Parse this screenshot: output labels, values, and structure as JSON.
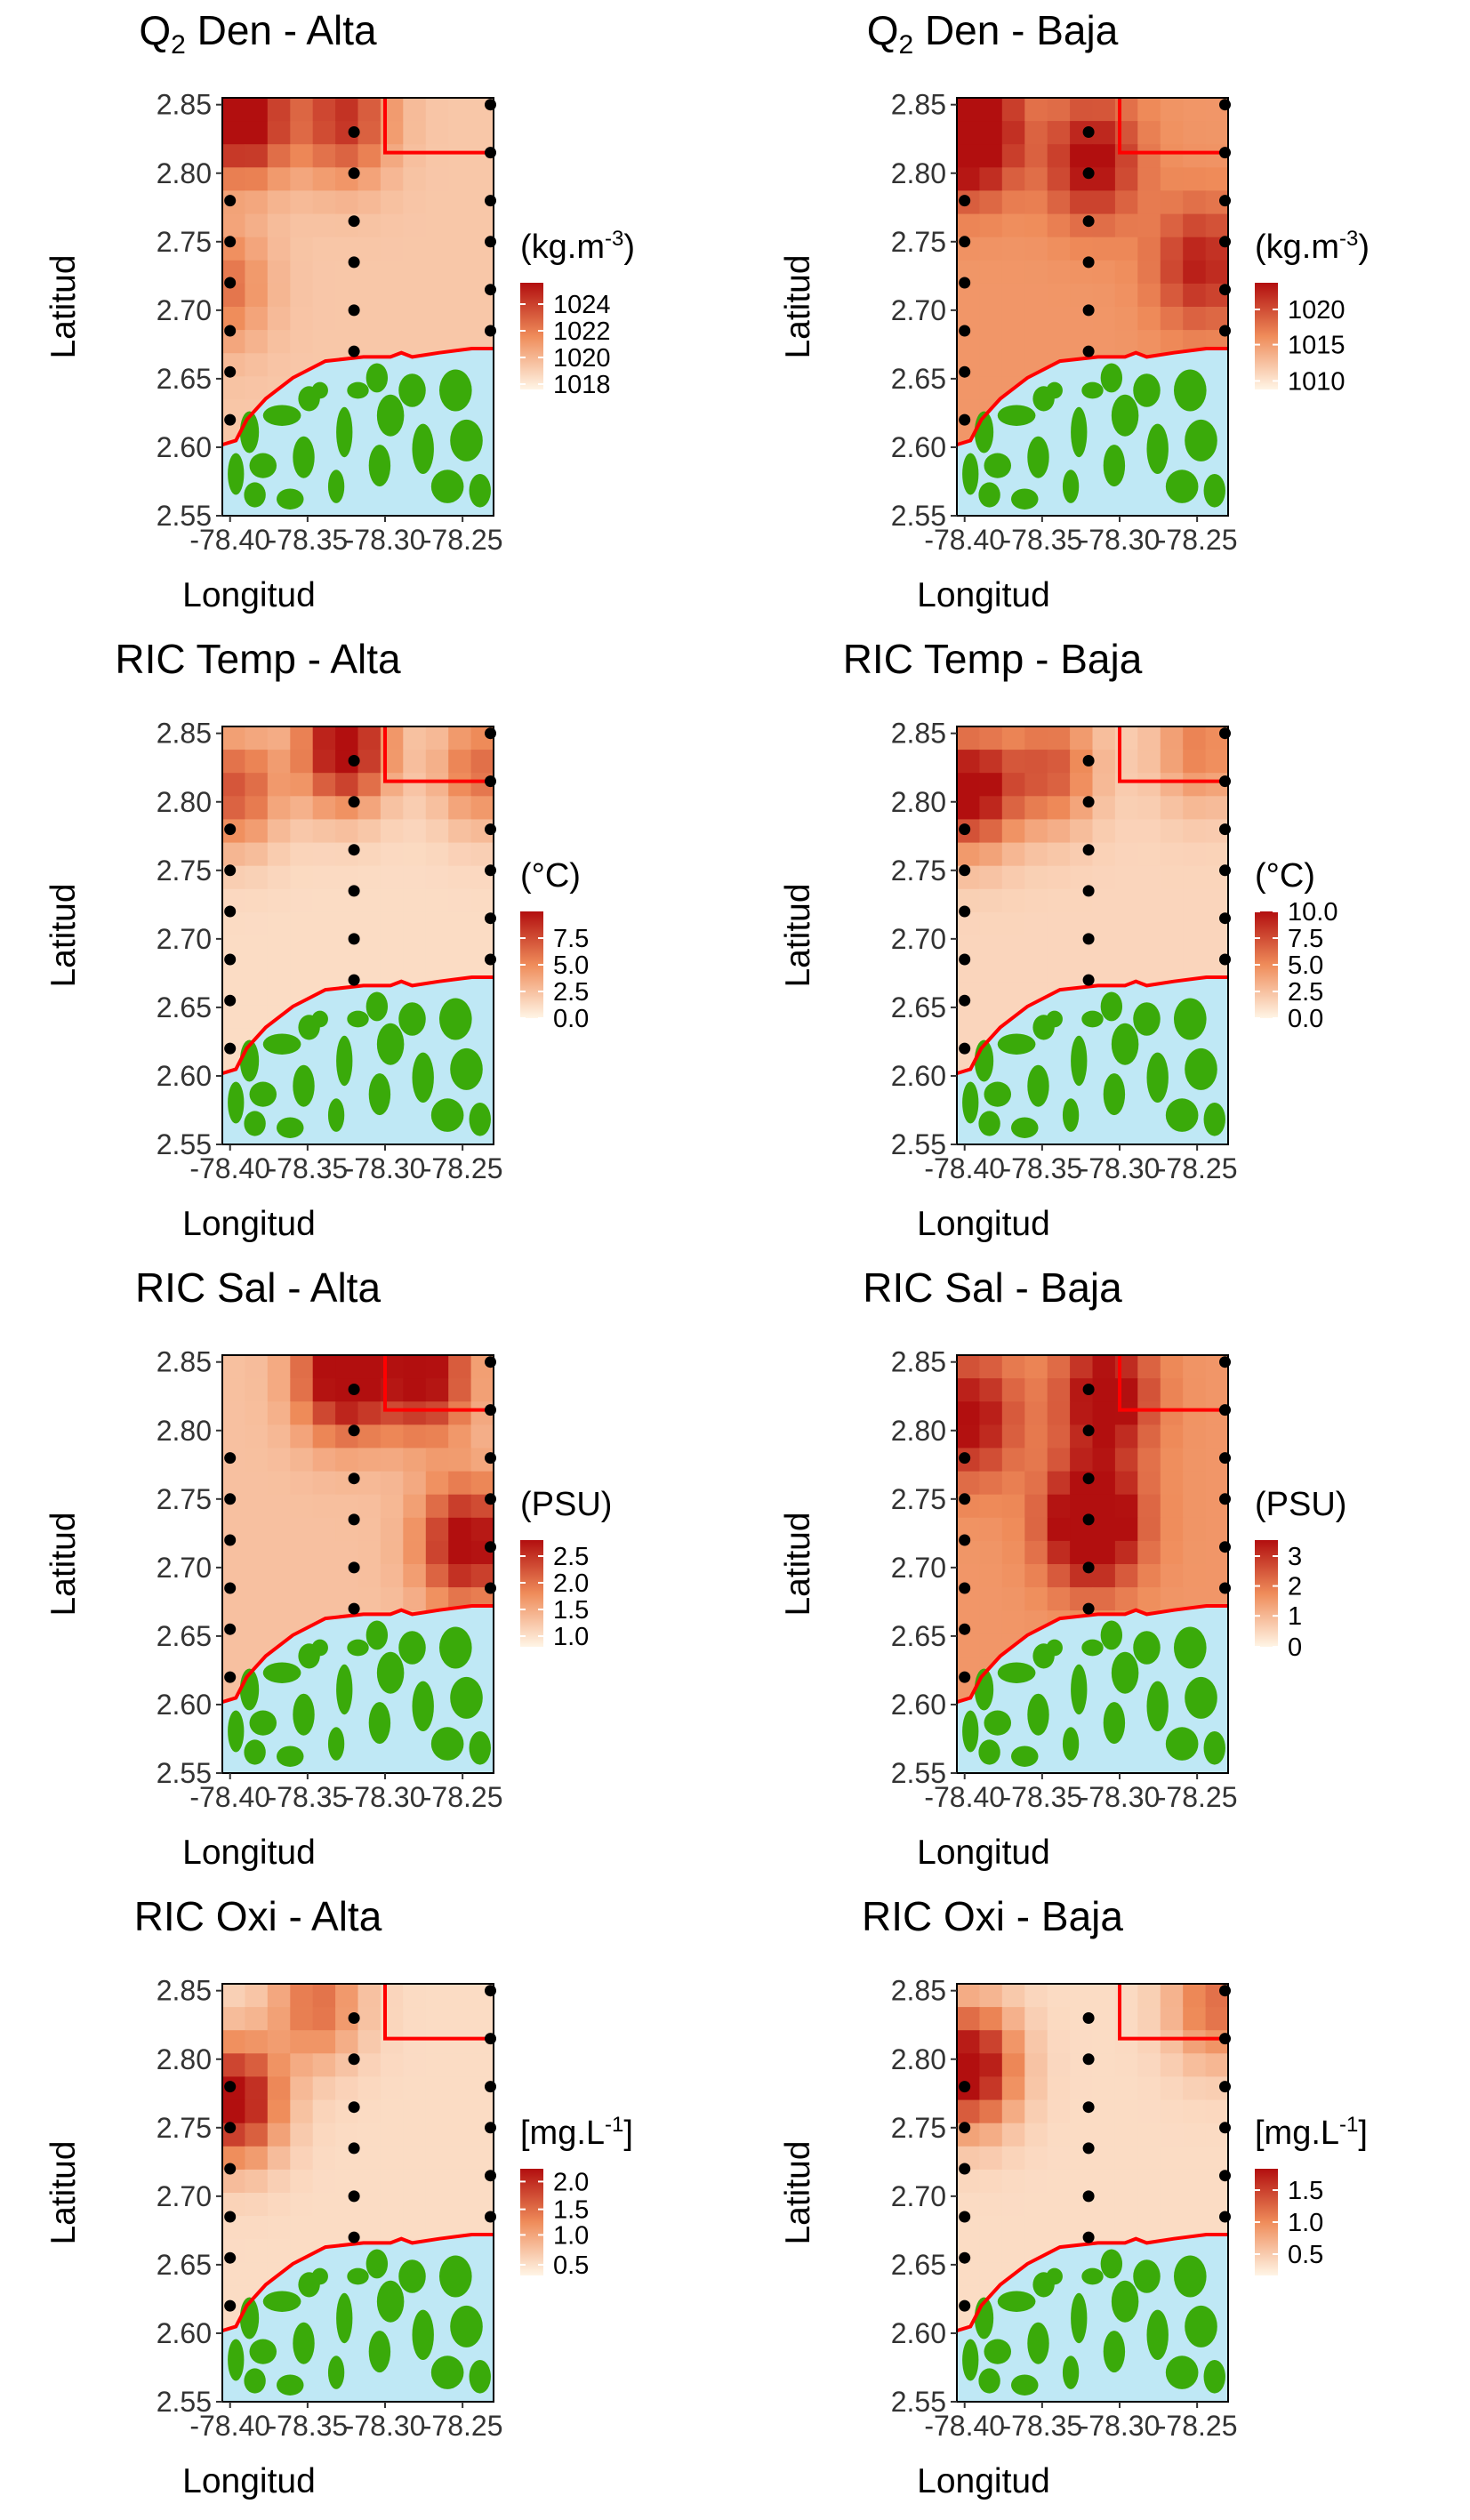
{
  "colors": {
    "scale_low": "#fff5e6",
    "scale_mid": "#ef8c5a",
    "scale_high": "#b20f0f",
    "water": "#bfe8f5",
    "land": "#3aaa0a",
    "outline": "#ff0000",
    "station": "#000000"
  },
  "axes": {
    "xlabel": "Longitud",
    "ylabel": "Latitud",
    "x_ticks": [
      "-78.40",
      "-78.35",
      "-78.30",
      "-78.25"
    ],
    "y_ticks": [
      "2.85",
      "2.80",
      "2.75",
      "2.70",
      "2.65",
      "2.60",
      "2.55"
    ]
  },
  "panels": [
    {
      "title_main": "Q",
      "title_sub": "2",
      "title_rest": " Den - Alta",
      "legend_title": "(kg.m",
      "legend_sup": "-3",
      "legend_close": ")",
      "legend_labels": [
        "1024",
        "1022",
        "1020",
        "1018"
      ],
      "legend_fracs": [
        0.8,
        0.55,
        0.3,
        0.05
      ],
      "hotspots": [
        [
          0.08,
          0.95,
          0.95
        ],
        [
          0.45,
          0.95,
          0.65
        ],
        [
          0.0,
          0.55,
          0.4
        ]
      ],
      "base": 0.22
    },
    {
      "title_main": "Q",
      "title_sub": "2",
      "title_rest": " Den - Baja",
      "legend_title": "(kg.m",
      "legend_sup": "-3",
      "legend_close": ")",
      "legend_labels": [
        "1020",
        "1015",
        "1010"
      ],
      "legend_fracs": [
        0.75,
        0.42,
        0.08
      ],
      "hotspots": [
        [
          0.05,
          0.92,
          1.0
        ],
        [
          0.5,
          0.85,
          0.6
        ],
        [
          0.9,
          0.6,
          0.5
        ]
      ],
      "base": 0.45
    },
    {
      "title_main": "RIC Temp - Alta",
      "title_sub": "",
      "title_rest": "",
      "legend_title": "(°C)",
      "legend_sup": "",
      "legend_close": "",
      "legend_labels": [
        "7.5",
        "5.0",
        "2.5",
        "0.0"
      ],
      "legend_fracs": [
        0.75,
        0.5,
        0.25,
        0.0
      ],
      "hotspots": [
        [
          0.45,
          0.95,
          1.0
        ],
        [
          0.05,
          0.85,
          0.6
        ],
        [
          0.95,
          0.9,
          0.5
        ]
      ],
      "base": 0.12
    },
    {
      "title_main": "RIC Temp - Baja",
      "title_sub": "",
      "title_rest": "",
      "legend_title": "(°C)",
      "legend_sup": "",
      "legend_close": "",
      "legend_labels": [
        "10.0",
        "7.5",
        "5.0",
        "2.5",
        "0.0"
      ],
      "legend_fracs": [
        1.0,
        0.75,
        0.5,
        0.25,
        0.0
      ],
      "hotspots": [
        [
          0.05,
          0.85,
          0.95
        ],
        [
          0.35,
          0.9,
          0.55
        ],
        [
          0.9,
          0.95,
          0.4
        ]
      ],
      "base": 0.15
    },
    {
      "title_main": "RIC Sal - Alta",
      "title_sub": "",
      "title_rest": "",
      "legend_title": "(PSU)",
      "legend_sup": "",
      "legend_close": "",
      "legend_labels": [
        "2.5",
        "2.0",
        "1.5",
        "1.0"
      ],
      "legend_fracs": [
        0.85,
        0.6,
        0.35,
        0.1
      ],
      "hotspots": [
        [
          0.45,
          0.95,
          0.95
        ],
        [
          0.9,
          0.55,
          0.85
        ],
        [
          0.75,
          0.95,
          0.8
        ]
      ],
      "base": 0.25
    },
    {
      "title_main": "RIC Sal - Baja",
      "title_sub": "",
      "title_rest": "",
      "legend_title": "(PSU)",
      "legend_sup": "",
      "legend_close": "",
      "legend_labels": [
        "3",
        "2",
        "1",
        "0"
      ],
      "legend_fracs": [
        0.85,
        0.57,
        0.29,
        0.0
      ],
      "hotspots": [
        [
          0.5,
          0.6,
          1.0
        ],
        [
          0.05,
          0.85,
          0.6
        ],
        [
          0.55,
          0.9,
          0.7
        ]
      ],
      "base": 0.45
    },
    {
      "title_main": "RIC Oxi - Alta",
      "title_sub": "",
      "title_rest": "",
      "legend_title": "[mg.L",
      "legend_sup": "-1",
      "legend_close": "]",
      "legend_labels": [
        "2.0",
        "1.5",
        "1.0",
        "0.5"
      ],
      "legend_fracs": [
        0.88,
        0.62,
        0.38,
        0.1
      ],
      "hotspots": [
        [
          0.05,
          0.72,
          0.95
        ],
        [
          0.35,
          0.95,
          0.5
        ]
      ],
      "base": 0.12
    },
    {
      "title_main": "RIC Oxi - Baja",
      "title_sub": "",
      "title_rest": "",
      "legend_title": "[mg.L",
      "legend_sup": "-1",
      "legend_close": "]",
      "legend_labels": [
        "1.5",
        "1.0",
        "0.5"
      ],
      "legend_fracs": [
        0.8,
        0.5,
        0.2
      ],
      "hotspots": [
        [
          0.05,
          0.8,
          1.0
        ],
        [
          0.95,
          0.95,
          0.5
        ]
      ],
      "base": 0.12
    }
  ]
}
